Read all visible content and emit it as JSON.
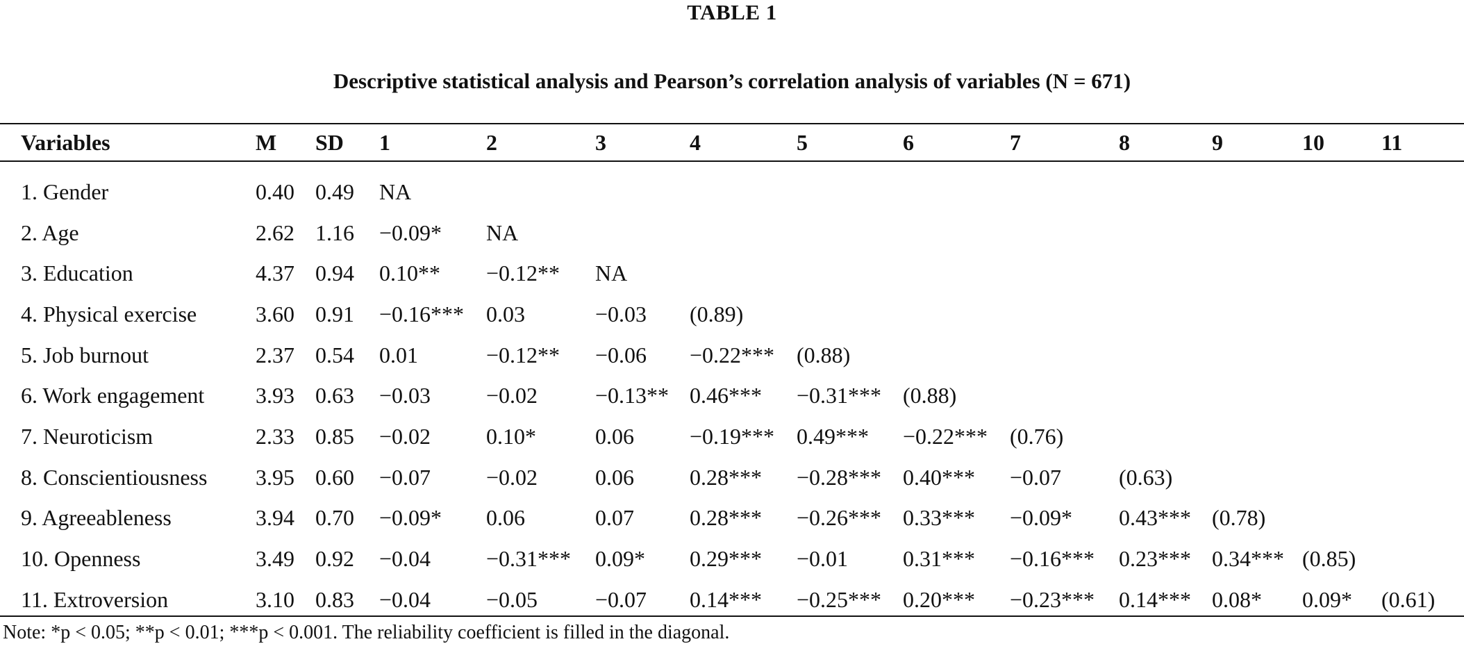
{
  "table_label": "TABLE 1",
  "caption": "Descriptive statistical analysis and Pearson’s correlation analysis of variables (N = 671)",
  "columns": [
    "Variables",
    "M",
    "SD",
    "1",
    "2",
    "3",
    "4",
    "5",
    "6",
    "7",
    "8",
    "9",
    "10",
    "11"
  ],
  "rows": [
    {
      "variable": "1. Gender",
      "m": "0.40",
      "sd": "0.49",
      "r": [
        "NA",
        "",
        "",
        "",
        "",
        "",
        "",
        "",
        "",
        "",
        ""
      ]
    },
    {
      "variable": "2. Age",
      "m": "2.62",
      "sd": "1.16",
      "r": [
        "−0.09*",
        "NA",
        "",
        "",
        "",
        "",
        "",
        "",
        "",
        "",
        ""
      ]
    },
    {
      "variable": "3. Education",
      "m": "4.37",
      "sd": "0.94",
      "r": [
        "0.10**",
        "−0.12**",
        "NA",
        "",
        "",
        "",
        "",
        "",
        "",
        "",
        ""
      ]
    },
    {
      "variable": "4. Physical exercise",
      "m": "3.60",
      "sd": "0.91",
      "r": [
        "−0.16***",
        "0.03",
        "−0.03",
        "(0.89)",
        "",
        "",
        "",
        "",
        "",
        "",
        ""
      ]
    },
    {
      "variable": "5. Job burnout",
      "m": "2.37",
      "sd": "0.54",
      "r": [
        "0.01",
        "−0.12**",
        "−0.06",
        "−0.22***",
        "(0.88)",
        "",
        "",
        "",
        "",
        "",
        ""
      ]
    },
    {
      "variable": "6. Work engagement",
      "m": "3.93",
      "sd": "0.63",
      "r": [
        "−0.03",
        "−0.02",
        "−0.13**",
        "0.46***",
        "−0.31***",
        "(0.88)",
        "",
        "",
        "",
        "",
        ""
      ]
    },
    {
      "variable": "7. Neuroticism",
      "m": "2.33",
      "sd": "0.85",
      "r": [
        "−0.02",
        "0.10*",
        "0.06",
        "−0.19***",
        "0.49***",
        "−0.22***",
        "(0.76)",
        "",
        "",
        "",
        ""
      ]
    },
    {
      "variable": "8. Conscientiousness",
      "m": "3.95",
      "sd": "0.60",
      "r": [
        "−0.07",
        "−0.02",
        "0.06",
        "0.28***",
        "−0.28***",
        "0.40***",
        "−0.07",
        "(0.63)",
        "",
        "",
        ""
      ]
    },
    {
      "variable": "9. Agreeableness",
      "m": "3.94",
      "sd": "0.70",
      "r": [
        "−0.09*",
        "0.06",
        "0.07",
        "0.28***",
        "−0.26***",
        "0.33***",
        "−0.09*",
        "0.43***",
        "(0.78)",
        "",
        ""
      ]
    },
    {
      "variable": "10. Openness",
      "m": "3.49",
      "sd": "0.92",
      "r": [
        "−0.04",
        "−0.31***",
        "0.09*",
        "0.29***",
        "−0.01",
        "0.31***",
        "−0.16***",
        "0.23***",
        "0.34***",
        "(0.85)",
        ""
      ]
    },
    {
      "variable": "11. Extroversion",
      "m": "3.10",
      "sd": "0.83",
      "r": [
        "−0.04",
        "−0.05",
        "−0.07",
        "0.14***",
        "−0.25***",
        "0.20***",
        "−0.23***",
        "0.14***",
        "0.08*",
        "0.09*",
        "(0.61)"
      ]
    }
  ],
  "note": "Note: *p < 0.05; **p < 0.01; ***p < 0.001. The reliability coefficient is filled in the diagonal."
}
